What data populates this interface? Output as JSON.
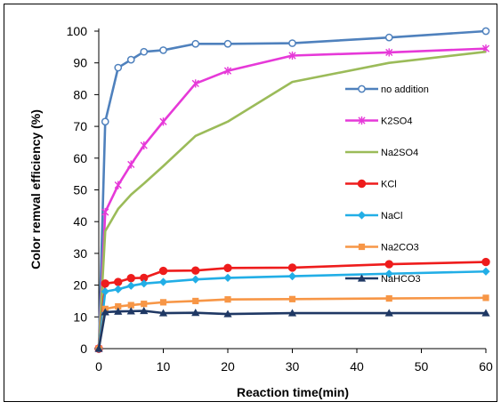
{
  "chart_data": {
    "type": "line",
    "title": "",
    "xlabel": "Reaction time(min)",
    "ylabel": "Color remval efficiency (%)",
    "xlim": [
      0,
      60
    ],
    "ylim": [
      0,
      100
    ],
    "xticks": [
      0,
      10,
      20,
      30,
      40,
      50,
      60
    ],
    "yticks": [
      0,
      10,
      20,
      30,
      40,
      50,
      60,
      70,
      80,
      90,
      100
    ],
    "grid": false,
    "legend_position": "right",
    "series": [
      {
        "name": "no addition",
        "color": "#4f81bd",
        "marker": "circle-open",
        "x": [
          0,
          1,
          3,
          5,
          7,
          10,
          15,
          20,
          30,
          45,
          60
        ],
        "y": [
          0,
          71.5,
          88.5,
          91,
          93.5,
          94,
          96,
          96,
          96.2,
          98,
          100
        ]
      },
      {
        "name": "K2SO4",
        "color": "#e639d8",
        "marker": "asterisk",
        "x": [
          0,
          1,
          3,
          5,
          7,
          10,
          15,
          20,
          30,
          45,
          60
        ],
        "y": [
          0,
          43,
          51.5,
          58,
          64,
          71.5,
          83.5,
          87.5,
          92.3,
          93.3,
          94.5
        ]
      },
      {
        "name": "Na2SO4",
        "color": "#9bbb59",
        "marker": "none",
        "x": [
          0,
          1,
          3,
          5,
          7,
          10,
          15,
          20,
          30,
          45,
          60
        ],
        "y": [
          0,
          37,
          44,
          48.5,
          52,
          57.5,
          67,
          71.5,
          84,
          90,
          93.5
        ]
      },
      {
        "name": "KCl",
        "color": "#ee1c1c",
        "marker": "circle",
        "x": [
          0,
          1,
          3,
          5,
          7,
          10,
          15,
          20,
          30,
          45,
          60
        ],
        "y": [
          0,
          20.5,
          21,
          22.2,
          22.3,
          24.5,
          24.6,
          25.4,
          25.5,
          26.6,
          27.3
        ]
      },
      {
        "name": "NaCl",
        "color": "#22aee6",
        "marker": "diamond",
        "x": [
          0,
          1,
          3,
          5,
          7,
          10,
          15,
          20,
          30,
          45,
          60
        ],
        "y": [
          0,
          18,
          18.7,
          19.8,
          20.5,
          21,
          21.8,
          22.3,
          22.8,
          23.6,
          24.3
        ]
      },
      {
        "name": "Na2CO3",
        "color": "#f79646",
        "marker": "square",
        "x": [
          0,
          1,
          3,
          5,
          7,
          10,
          15,
          20,
          30,
          45,
          60
        ],
        "y": [
          0,
          12.5,
          13.3,
          13.7,
          14.1,
          14.6,
          15,
          15.5,
          15.6,
          15.8,
          16
        ]
      },
      {
        "name": "NaHCO3",
        "color": "#1f3864",
        "marker": "triangle",
        "x": [
          0,
          1,
          3,
          5,
          7,
          10,
          15,
          20,
          30,
          45,
          60
        ],
        "y": [
          0,
          11.5,
          11.7,
          11.8,
          11.9,
          11.2,
          11.3,
          10.9,
          11.2,
          11.2,
          11.2
        ]
      }
    ]
  }
}
